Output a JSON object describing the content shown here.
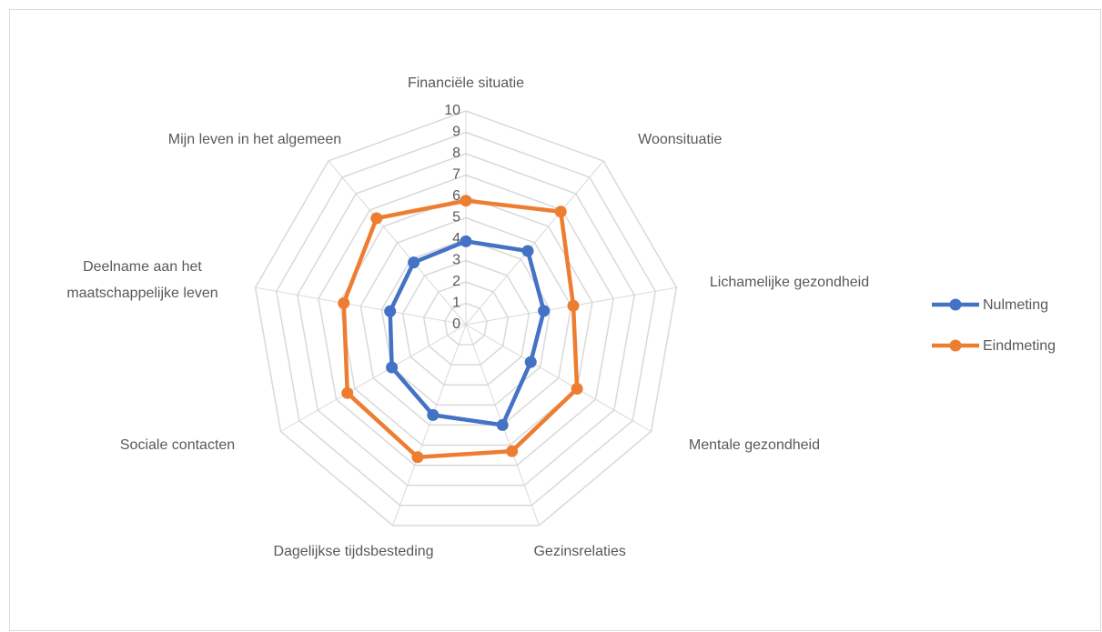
{
  "chart_data": {
    "type": "radar",
    "categories": [
      "Financiële situatie",
      "Woonsituatie",
      "Lichamelijke gezondheid",
      "Mentale gezondheid",
      "Gezinsrelaties",
      "Dagelijkse tijdsbesteding",
      "Sociale contacten",
      "Deelname aan het maatschappelijke leven",
      "Mijn leven in het algemeen"
    ],
    "series": [
      {
        "name": "Nulmeting",
        "color": "#4472c4",
        "values": [
          3.9,
          4.5,
          3.7,
          3.5,
          5.0,
          4.5,
          4.0,
          3.6,
          3.8
        ]
      },
      {
        "name": "Eindmeting",
        "color": "#ed7d31",
        "values": [
          5.8,
          6.9,
          5.1,
          6.0,
          6.3,
          6.6,
          6.4,
          5.8,
          6.5
        ]
      }
    ],
    "ylim": [
      0,
      10
    ],
    "yticks": [
      0,
      1,
      2,
      3,
      4,
      5,
      6,
      7,
      8,
      9,
      10
    ],
    "grid": true,
    "legend": "right"
  }
}
